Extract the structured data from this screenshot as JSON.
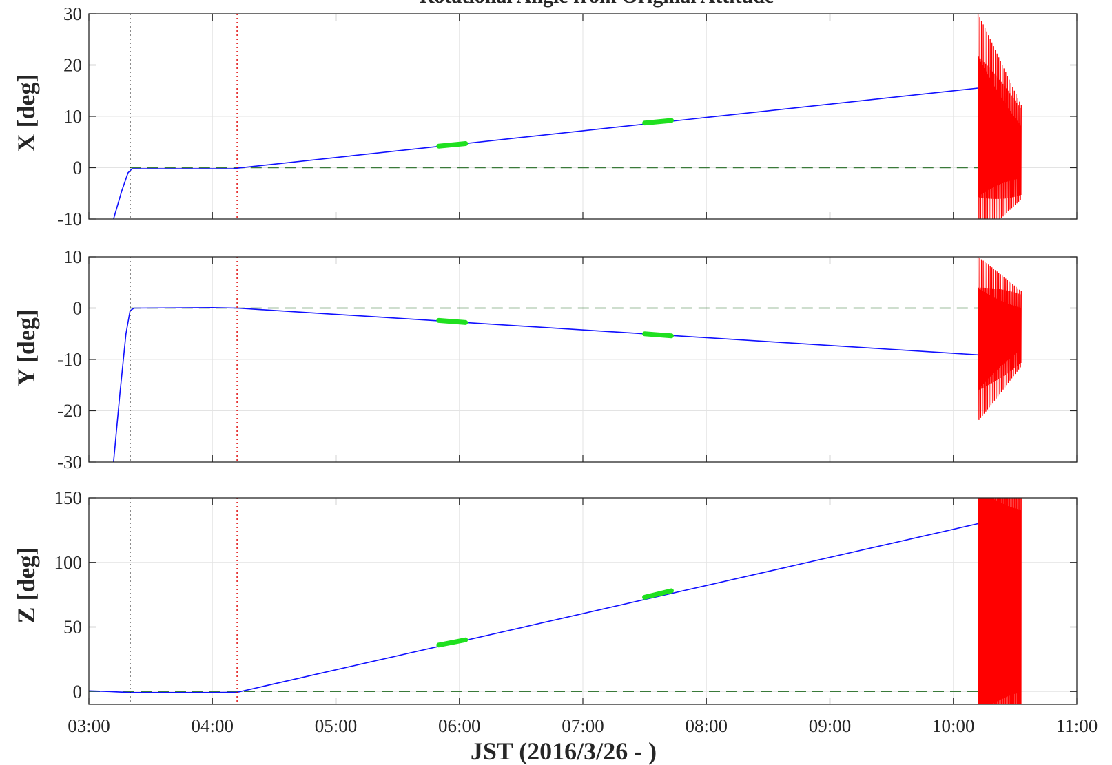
{
  "chart_data": {
    "type": "line",
    "title": "Rotational Angle from Original Attitude",
    "xlabel": "JST (2016/3/26 - )",
    "xlim": [
      "03:00",
      "11:00"
    ],
    "x_ticks": [
      "03:00",
      "04:00",
      "05:00",
      "06:00",
      "07:00",
      "08:00",
      "09:00",
      "10:00",
      "11:00"
    ],
    "grid": true,
    "markers": [
      {
        "time": "03:20",
        "color": "#000000",
        "style": "dotted"
      },
      {
        "time": "04:12",
        "color": "#e00000",
        "style": "dotted"
      }
    ],
    "panels": [
      {
        "ylabel": "X [deg]",
        "ylim": [
          -10,
          30
        ],
        "y_ticks": [
          -10,
          0,
          10,
          20,
          30
        ],
        "series": [
          {
            "role": "baseline",
            "style": "dashed",
            "color": "#3a7a3a",
            "points": [
              [
                "03:20",
                0
              ],
              [
                "10:12",
                0
              ]
            ]
          },
          {
            "role": "estimate",
            "color": "#1010ff",
            "points": [
              [
                "03:12",
                -10
              ],
              [
                "03:16",
                -4.5
              ],
              [
                "03:19",
                -1.0
              ],
              [
                "03:21",
                -0.2
              ],
              [
                "03:30",
                -0.2
              ],
              [
                "04:00",
                -0.2
              ],
              [
                "04:10",
                -0.2
              ],
              [
                "04:12",
                -0.1
              ],
              [
                "10:12",
                15.5
              ]
            ]
          },
          {
            "role": "highlight",
            "color": "#1fe01f",
            "segments": [
              [
                [
                  "05:50",
                  4.2
                ],
                [
                  "06:03",
                  4.7
                ]
              ],
              [
                [
                  "07:30",
                  8.7
                ],
                [
                  "07:43",
                  9.2
                ]
              ]
            ]
          },
          {
            "role": "oscillation",
            "color": "#ff0000",
            "t_start": "10:12",
            "t_end": "10:33",
            "center_start": 8,
            "center_end": 3,
            "amp_start": 22,
            "amp_end": 10
          }
        ]
      },
      {
        "ylabel": "Y [deg]",
        "ylim": [
          -30,
          10
        ],
        "y_ticks": [
          -30,
          -20,
          -10,
          0,
          10
        ],
        "series": [
          {
            "role": "baseline",
            "style": "dashed",
            "color": "#3a7a3a",
            "points": [
              [
                "03:20",
                0
              ],
              [
                "10:12",
                0
              ]
            ]
          },
          {
            "role": "estimate",
            "color": "#1010ff",
            "points": [
              [
                "03:12",
                -30
              ],
              [
                "03:15",
                -17
              ],
              [
                "03:18",
                -5
              ],
              [
                "03:20",
                -0.5
              ],
              [
                "03:22",
                0
              ],
              [
                "04:00",
                0.1
              ],
              [
                "04:12",
                0
              ],
              [
                "10:12",
                -9.1
              ]
            ]
          },
          {
            "role": "highlight",
            "color": "#1fe01f",
            "segments": [
              [
                [
                  "05:50",
                  -2.4
                ],
                [
                  "06:03",
                  -2.8
                ]
              ],
              [
                [
                  "07:30",
                  -5.0
                ],
                [
                  "07:43",
                  -5.4
                ]
              ]
            ]
          },
          {
            "role": "oscillation",
            "color": "#ff0000",
            "t_start": "10:12",
            "t_end": "10:33",
            "center_start": -6,
            "center_end": -4,
            "amp_start": 16,
            "amp_end": 8
          }
        ]
      },
      {
        "ylabel": "Z [deg]",
        "ylim": [
          -10,
          150
        ],
        "y_ticks": [
          0,
          50,
          100,
          150
        ],
        "series": [
          {
            "role": "baseline",
            "style": "dashed",
            "color": "#3a7a3a",
            "points": [
              [
                "03:00",
                0
              ],
              [
                "10:12",
                0
              ]
            ]
          },
          {
            "role": "estimate",
            "color": "#1010ff",
            "points": [
              [
                "03:00",
                0.5
              ],
              [
                "03:10",
                0
              ],
              [
                "03:20",
                -0.8
              ],
              [
                "04:00",
                -0.8
              ],
              [
                "04:12",
                -0.6
              ],
              [
                "10:12",
                130
              ]
            ]
          },
          {
            "role": "highlight",
            "color": "#1fe01f",
            "segments": [
              [
                [
                  "05:50",
                  36
                ],
                [
                  "06:03",
                  40
                ]
              ],
              [
                [
                  "07:30",
                  73
                ],
                [
                  "07:43",
                  78
                ]
              ]
            ]
          },
          {
            "role": "oscillation",
            "color": "#ff0000",
            "t_start": "10:12",
            "t_end": "10:33",
            "center_start": 70,
            "center_end": 70,
            "amp_start": 140,
            "amp_end": 140
          }
        ]
      }
    ]
  }
}
